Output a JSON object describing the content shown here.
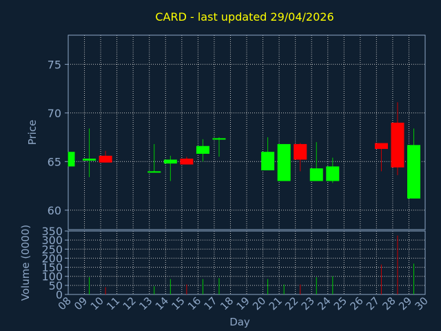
{
  "chart_data": {
    "type": "candlestick",
    "title": "CARD - last updated 29/04/2026",
    "xlabel": "Day",
    "ylabel_price": "Price",
    "ylabel_volume": "Volume (0000)",
    "x_ticks": [
      "08",
      "09",
      "10",
      "11",
      "12",
      "13",
      "14",
      "15",
      "16",
      "17",
      "18",
      "19",
      "20",
      "21",
      "22",
      "23",
      "24",
      "25",
      "26",
      "27",
      "28",
      "29",
      "30"
    ],
    "price_ylim": [
      58,
      78
    ],
    "price_yticks": [
      60,
      65,
      70,
      75
    ],
    "volume_ylim": [
      0,
      350
    ],
    "volume_yticks": [
      0,
      50,
      100,
      150,
      200,
      250,
      300,
      350
    ],
    "grid": true,
    "candles": [
      {
        "day": 8.0,
        "open": 64.5,
        "close": 66.0,
        "high": 66.0,
        "low": 64.5,
        "volume": 0
      },
      {
        "day": 9.3,
        "open": 65.1,
        "close": 65.3,
        "high": 68.4,
        "low": 63.4,
        "volume": 95
      },
      {
        "day": 10.3,
        "open": 65.6,
        "close": 64.9,
        "high": 66.1,
        "low": 64.9,
        "volume": 40
      },
      {
        "day": 13.3,
        "open": 63.9,
        "close": 64.0,
        "high": 66.8,
        "low": 63.9,
        "volume": 45
      },
      {
        "day": 14.3,
        "open": 64.8,
        "close": 65.2,
        "high": 65.6,
        "low": 63.0,
        "volume": 85
      },
      {
        "day": 15.3,
        "open": 65.3,
        "close": 64.7,
        "high": 65.5,
        "low": 64.7,
        "volume": 55
      },
      {
        "day": 16.3,
        "open": 65.8,
        "close": 66.6,
        "high": 67.3,
        "low": 65.0,
        "volume": 85
      },
      {
        "day": 17.3,
        "open": 67.3,
        "close": 67.4,
        "high": 67.5,
        "low": 65.5,
        "volume": 90
      },
      {
        "day": 20.3,
        "open": 64.1,
        "close": 66.0,
        "high": 67.5,
        "low": 64.1,
        "volume": 85
      },
      {
        "day": 21.3,
        "open": 63.0,
        "close": 66.8,
        "high": 66.8,
        "low": 63.0,
        "volume": 55
      },
      {
        "day": 22.3,
        "open": 66.8,
        "close": 65.2,
        "high": 66.9,
        "low": 64.0,
        "volume": 55
      },
      {
        "day": 23.3,
        "open": 63.0,
        "close": 64.3,
        "high": 67.0,
        "low": 63.0,
        "volume": 95
      },
      {
        "day": 24.3,
        "open": 63.0,
        "close": 64.5,
        "high": 65.4,
        "low": 62.8,
        "volume": 100
      },
      {
        "day": 27.3,
        "open": 66.9,
        "close": 66.3,
        "high": 66.9,
        "low": 64.0,
        "volume": 165
      },
      {
        "day": 28.3,
        "open": 69.0,
        "close": 64.4,
        "high": 71.1,
        "low": 63.6,
        "volume": 325
      },
      {
        "day": 29.3,
        "open": 61.2,
        "close": 66.7,
        "high": 68.4,
        "low": 61.2,
        "volume": 170
      }
    ]
  },
  "colors": {
    "background": "#0f1f30",
    "axis": "#8fa8c8",
    "grid": "#c8c8c8",
    "title": "#ffff00",
    "up": "#00ff00",
    "down": "#ff0000",
    "wick_up": "#00cc00",
    "wick_down": "#cc0000"
  }
}
